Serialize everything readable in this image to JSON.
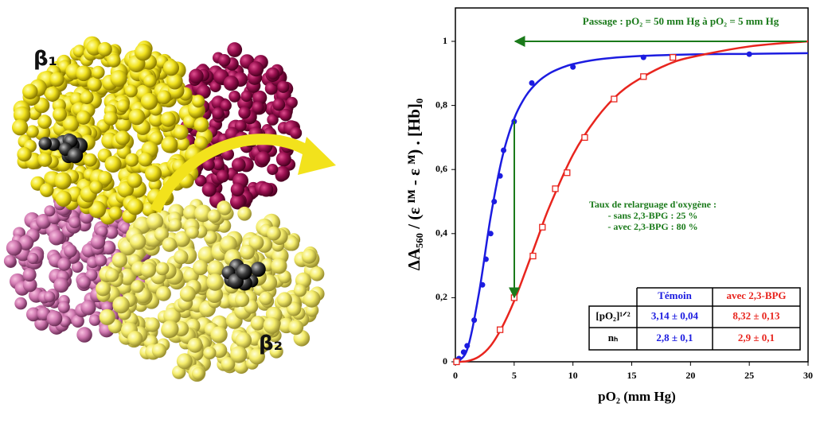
{
  "figure": {
    "labels": [
      "β₁",
      "β₂"
    ]
  },
  "chart_data": {
    "type": "scatter",
    "x_label": "pO₂ (mm Hg)",
    "y_label": "ΔA₅₆₀ / (ε ᴵᴹ - ε ᴹ) . [Hb]₀",
    "xlim": [
      0,
      30
    ],
    "ylim": [
      0,
      1
    ],
    "xticks": [
      0,
      5,
      10,
      15,
      20,
      25,
      30
    ],
    "yticks": [
      0,
      {
        "value": 0.2,
        "label": "0,2"
      },
      {
        "value": 0.4,
        "label": "0,4"
      },
      {
        "value": 0.6,
        "label": "0,6"
      },
      {
        "value": 0.8,
        "label": "0,8"
      },
      1
    ],
    "series": [
      {
        "type": "scatter",
        "marker": "filled-circle",
        "color": "#1c1ce0",
        "x": [
          0.3,
          0.7,
          1.0,
          1.6,
          2.3,
          2.6,
          3.0,
          3.3,
          3.8,
          4.1,
          5.0,
          6.5,
          10,
          16,
          25
        ],
        "values": [
          0.01,
          0.03,
          0.05,
          0.13,
          0.24,
          0.32,
          0.4,
          0.5,
          0.58,
          0.66,
          0.75,
          0.87,
          0.92,
          0.95,
          0.96
        ]
      },
      {
        "type": "scatter",
        "marker": "open-square",
        "color": "#e8251e",
        "x": [
          0.1,
          3.8,
          5.0,
          6.6,
          7.4,
          8.5,
          9.5,
          11,
          13.5,
          16,
          18.5
        ],
        "values": [
          0,
          0.1,
          0.2,
          0.33,
          0.42,
          0.54,
          0.59,
          0.7,
          0.82,
          0.89,
          0.95
        ]
      },
      {
        "type": "line",
        "color": "#1c1ce0",
        "x": [
          0,
          1,
          2,
          3,
          4,
          5,
          6,
          7,
          8,
          9,
          10,
          12,
          15,
          20,
          25,
          30
        ],
        "values": [
          0,
          0.038,
          0.213,
          0.452,
          0.64,
          0.759,
          0.83,
          0.873,
          0.9,
          0.917,
          0.929,
          0.943,
          0.953,
          0.959,
          0.961,
          0.963
        ]
      },
      {
        "type": "line",
        "color": "#e8251e",
        "x": [
          0,
          1,
          2,
          3,
          4,
          5,
          6,
          7,
          8,
          10,
          12,
          14,
          16,
          18,
          20,
          25,
          30
        ],
        "values": [
          0,
          0.002,
          0.016,
          0.05,
          0.11,
          0.19,
          0.286,
          0.386,
          0.484,
          0.646,
          0.76,
          0.84,
          0.89,
          0.927,
          0.95,
          0.984,
          1.0
        ]
      }
    ],
    "annotations": [
      "Passage : pO₂ = 50 mm Hg à pO₂ = 5 mm Hg",
      "Taux de relarguage d'oxygène :",
      "- sans 2,3-BPG : 25 %",
      "- avec 2,3-BPG : 80 %"
    ],
    "annotation_color": "#1a7a1a",
    "table": {
      "columns": [
        "Témoin",
        "avec 2,3-BPG"
      ],
      "rows": [
        {
          "label": "[pO₂]¹ᐟ²",
          "cells": [
            "3,14 ± 0,04",
            "8,32 ± 0,13"
          ]
        },
        {
          "label": "nₕ",
          "cells": [
            "2,8 ± 0,1",
            "2,9 ± 0,1"
          ]
        }
      ]
    }
  }
}
